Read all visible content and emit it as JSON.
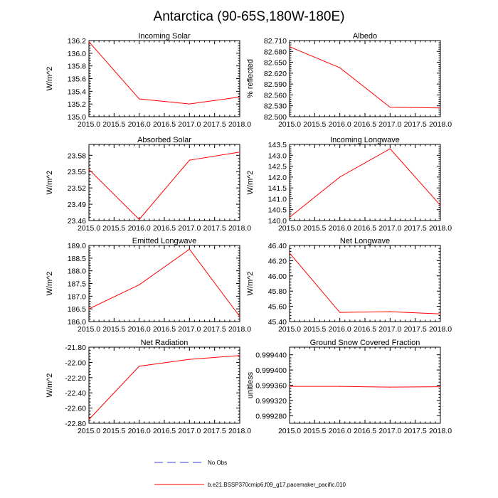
{
  "figure": {
    "title": "Antarctica (90-65S,180W-180E)",
    "line_color": "#ff0000",
    "obs_line_color": "#3b3bdb",
    "axis_color": "#000000"
  },
  "legend": {
    "obs_label": "No Obs",
    "model_label": "b.e21.BSSP370cmip6.f09_g17.pacemaker_pacific.010"
  },
  "chart_data": [
    {
      "id": "incoming-solar",
      "type": "line",
      "title": "Incoming Solar",
      "ylabel": "W/m^2",
      "x": [
        2015.0,
        2016.0,
        2017.0,
        2018.0
      ],
      "y": [
        136.18,
        135.28,
        135.2,
        135.31
      ],
      "xlim": [
        2015.0,
        2018.0
      ],
      "ylim": [
        135.0,
        136.2
      ],
      "xticks": [
        "2015.0",
        "2015.5",
        "2016.0",
        "2016.5",
        "2017.0",
        "2017.5",
        "2018.0"
      ],
      "yticks": [
        "135.0",
        "135.2",
        "135.4",
        "135.6",
        "135.8",
        "136.0",
        "136.2"
      ]
    },
    {
      "id": "albedo",
      "type": "line",
      "title": "Albedo",
      "ylabel": "% reflected",
      "x": [
        2015.0,
        2016.0,
        2017.0,
        2018.0
      ],
      "y": [
        82.693,
        82.635,
        82.526,
        82.524
      ],
      "xlim": [
        2015.0,
        2018.0
      ],
      "ylim": [
        82.5,
        82.71
      ],
      "xticks": [
        "2015.0",
        "2015.5",
        "2016.0",
        "2016.5",
        "2017.0",
        "2017.5",
        "2018.0"
      ],
      "yticks": [
        "82.500",
        "82.530",
        "82.560",
        "82.590",
        "82.620",
        "82.650",
        "82.680",
        "82.710"
      ]
    },
    {
      "id": "absorbed-solar",
      "type": "line",
      "title": "Absorbed Solar",
      "ylabel": "W/m^2",
      "x": [
        2015.0,
        2016.0,
        2017.0,
        2018.0
      ],
      "y": [
        23.554,
        23.462,
        23.571,
        23.586
      ],
      "xlim": [
        2015.0,
        2018.0
      ],
      "ylim": [
        23.46,
        23.6
      ],
      "xticks": [
        "2015.0",
        "2015.5",
        "2016.0",
        "2016.5",
        "2017.0",
        "2017.5",
        "2018.0"
      ],
      "yticks": [
        "23.46",
        "23.49",
        "23.52",
        "23.55",
        "23.58"
      ]
    },
    {
      "id": "incoming-longwave",
      "type": "line",
      "title": "Incoming Longwave",
      "ylabel": "W/m^2",
      "x": [
        2015.0,
        2016.0,
        2017.0,
        2018.0
      ],
      "y": [
        140.15,
        142.0,
        143.3,
        140.7
      ],
      "xlim": [
        2015.0,
        2018.0
      ],
      "ylim": [
        140.0,
        143.5
      ],
      "xticks": [
        "2015.0",
        "2015.5",
        "2016.0",
        "2016.5",
        "2017.0",
        "2017.5",
        "2018.0"
      ],
      "yticks": [
        "140.0",
        "140.5",
        "141.0",
        "141.5",
        "142.0",
        "142.5",
        "143.0",
        "143.5"
      ]
    },
    {
      "id": "emitted-longwave",
      "type": "line",
      "title": "Emitted Longwave",
      "ylabel": "W/m^2",
      "x": [
        2015.0,
        2016.0,
        2017.0,
        2018.0
      ],
      "y": [
        186.5,
        187.45,
        188.85,
        186.2
      ],
      "xlim": [
        2015.0,
        2018.0
      ],
      "ylim": [
        186.0,
        189.0
      ],
      "xticks": [
        "2015.0",
        "2015.5",
        "2016.0",
        "2016.5",
        "2017.0",
        "2017.5",
        "2018.0"
      ],
      "yticks": [
        "186.0",
        "186.5",
        "187.0",
        "187.5",
        "188.0",
        "188.5",
        "189.0"
      ]
    },
    {
      "id": "net-longwave",
      "type": "line",
      "title": "Net Longwave",
      "ylabel": "W/m^2",
      "x": [
        2015.0,
        2016.0,
        2017.0,
        2018.0
      ],
      "y": [
        46.3,
        45.52,
        45.53,
        45.5
      ],
      "xlim": [
        2015.0,
        2018.0
      ],
      "ylim": [
        45.4,
        46.4
      ],
      "xticks": [
        "2015.0",
        "2015.5",
        "2016.0",
        "2016.5",
        "2017.0",
        "2017.5",
        "2018.0"
      ],
      "yticks": [
        "45.40",
        "45.60",
        "45.80",
        "46.00",
        "46.20",
        "46.40"
      ]
    },
    {
      "id": "net-radiation",
      "type": "line",
      "title": "Net Radiation",
      "ylabel": "W/m^2",
      "x": [
        2015.0,
        2016.0,
        2017.0,
        2018.0
      ],
      "y": [
        -22.75,
        -22.05,
        -21.96,
        -21.91
      ],
      "xlim": [
        2015.0,
        2018.0
      ],
      "ylim": [
        -22.8,
        -21.8
      ],
      "xticks": [
        "2015.0",
        "2015.5",
        "2016.0",
        "2016.5",
        "2017.0",
        "2017.5",
        "2018.0"
      ],
      "yticks": [
        "-22.80",
        "-22.60",
        "-22.40",
        "-22.20",
        "-22.00",
        "-21.80"
      ]
    },
    {
      "id": "ground-snow-covered-fraction",
      "type": "line",
      "title": "Ground Snow Covered Fraction",
      "ylabel": "unitless",
      "x": [
        2015.0,
        2016.0,
        2017.0,
        2018.0
      ],
      "y": [
        0.999357,
        0.999357,
        0.999355,
        0.999356
      ],
      "xlim": [
        2015.0,
        2018.0
      ],
      "ylim": [
        0.99926,
        0.99946
      ],
      "xticks": [
        "2015.0",
        "2015.5",
        "2016.0",
        "2016.5",
        "2017.0",
        "2017.5",
        "2018.0"
      ],
      "yticks": [
        "0.999280",
        "0.999320",
        "0.999360",
        "0.999400",
        "0.999440"
      ]
    }
  ]
}
